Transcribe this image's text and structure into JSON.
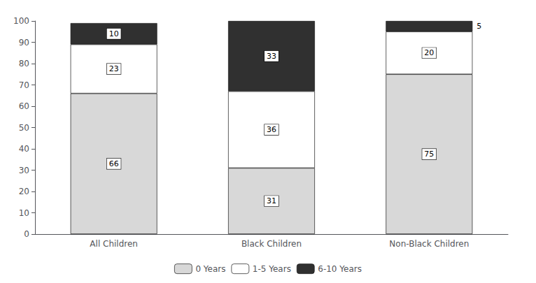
{
  "chart_data": {
    "type": "bar",
    "categories": [
      "All Children",
      "Black Children",
      "Non-Black Children"
    ],
    "series": [
      {
        "name": "0 Years",
        "color": "#d8d8d8",
        "values": [
          66,
          31,
          75
        ]
      },
      {
        "name": "1-5 Years",
        "color": "#ffffff",
        "values": [
          23,
          36,
          20
        ]
      },
      {
        "name": "6-10 Years",
        "color": "#303030",
        "values": [
          10,
          33,
          5
        ]
      }
    ],
    "stacked": true,
    "data_labels": true,
    "ylim": [
      0,
      100
    ],
    "yticks": [
      0,
      10,
      20,
      30,
      40,
      50,
      60,
      70,
      80,
      90,
      100
    ],
    "grid": false,
    "legend": "bottom"
  }
}
